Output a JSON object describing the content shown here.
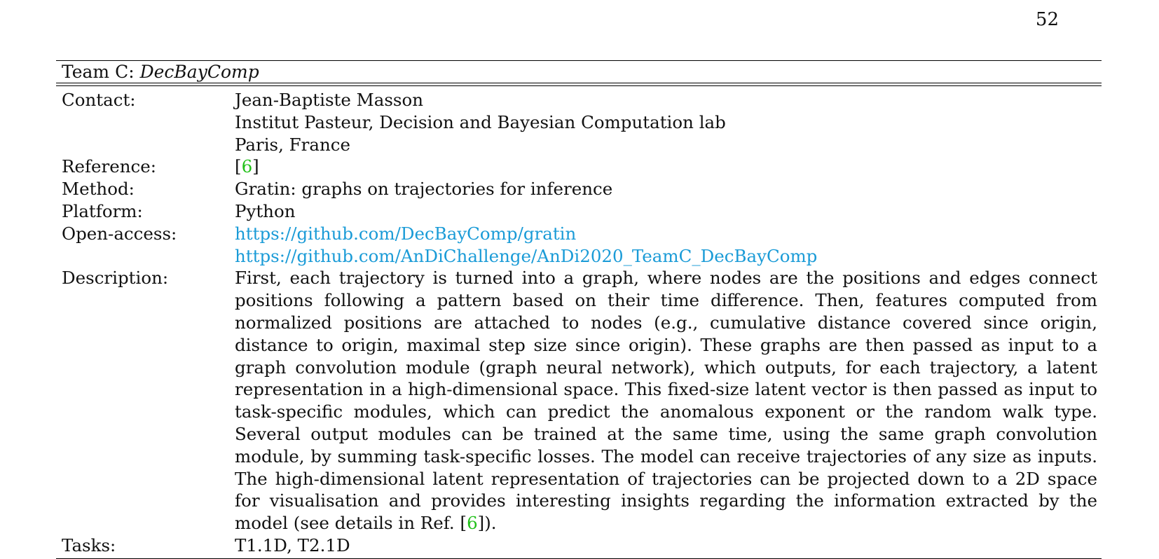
{
  "page_number": "52",
  "team": {
    "prefix": "Team C: ",
    "name": "DecBayComp"
  },
  "rows": {
    "contact": {
      "label": "Contact:",
      "lines": [
        "Jean-Baptiste Masson",
        "Institut Pasteur, Decision and Bayesian Computation lab",
        "Paris, France"
      ]
    },
    "reference": {
      "label": "Reference:",
      "open": "[",
      "cite": "6",
      "close": "]"
    },
    "method": {
      "label": "Method:",
      "value": "Gratin: graphs on trajectories for inference"
    },
    "platform": {
      "label": "Platform:",
      "value": "Python"
    },
    "open_access": {
      "label": "Open-access:",
      "links": [
        "https://github.com/DecBayComp/gratin",
        "https://github.com/AnDiChallenge/AnDi2020_TeamC_DecBayComp"
      ]
    },
    "description": {
      "label": "Description:",
      "text": "First, each trajectory is turned into a graph, where nodes are the positions and edges connect positions following a pattern based on their time difference. Then, features computed from normalized positions are attached to nodes (e.g., cumulative distance covered since origin, distance to origin, maximal step size since origin). These graphs are then passed as input to a graph convolution module (graph neural network), which outputs, for each trajectory, a latent representation in a high-dimensional space. This fixed-size latent vector is then passed as input to task-specific modules, which can predict the anomalous exponent or the random walk type. Several output modules can be trained at the same time, using the same graph convolution module, by summing task-specific losses. The model can receive trajectories of any size as inputs. The high-dimensional latent representation of trajectories can be projected down to a 2D space for visualisation and provides interesting insights regarding the information extracted by the model (see details in Ref. ",
      "cite_open": "[",
      "cite": "6",
      "cite_close": "]).",
      "ref_tail": ""
    },
    "tasks": {
      "label": "Tasks:",
      "value": "T1.1D, T2.1D"
    }
  },
  "colors": {
    "link": "#1a9bd7",
    "citation": "#22c11a"
  }
}
